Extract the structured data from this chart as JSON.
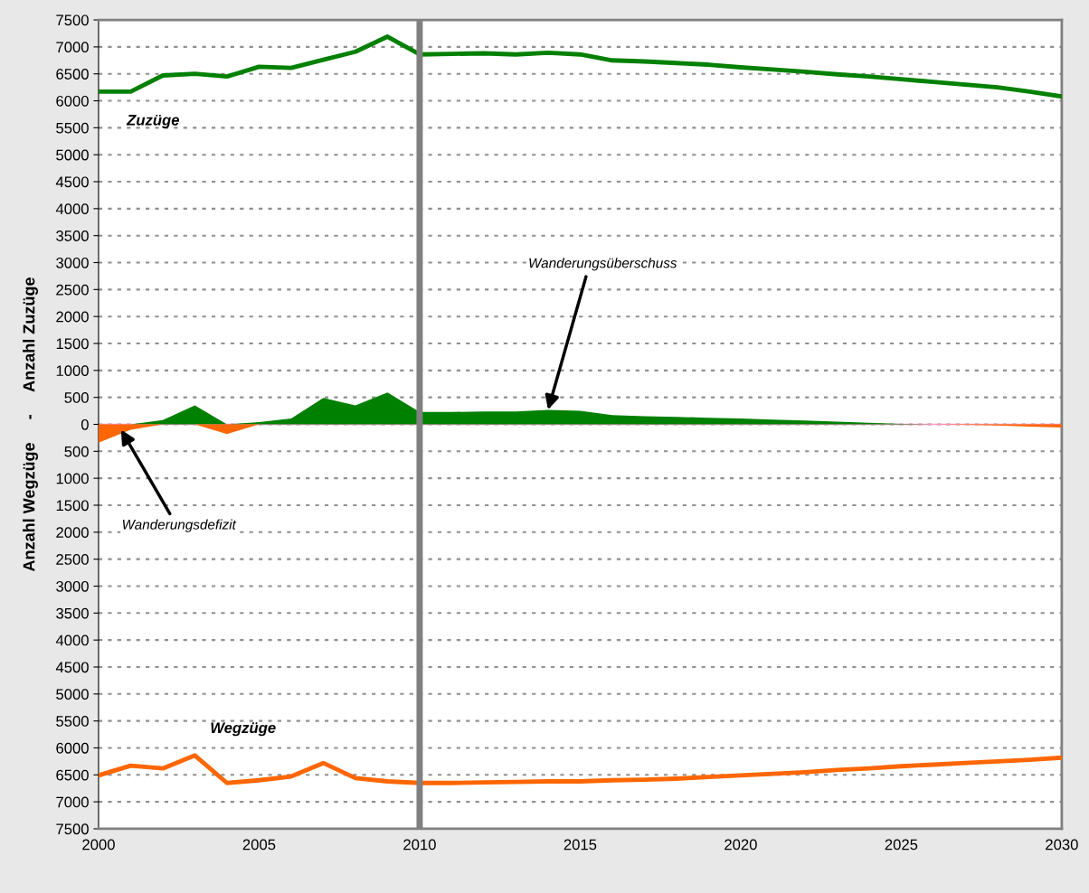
{
  "chart_data": {
    "type": "line",
    "ylabel": "Anzahl Wegzüge     -     Anzahl Zuzüge",
    "x": [
      2000,
      2001,
      2002,
      2003,
      2004,
      2005,
      2006,
      2007,
      2008,
      2009,
      2010,
      2011,
      2012,
      2013,
      2014,
      2015,
      2016,
      2017,
      2018,
      2019,
      2020,
      2021,
      2022,
      2023,
      2024,
      2025,
      2026,
      2027,
      2028,
      2029,
      2030
    ],
    "series": [
      {
        "name": "Zuzüge",
        "color": "#008000",
        "values": [
          6170,
          6170,
          6470,
          6500,
          6450,
          6630,
          6610,
          6760,
          6910,
          7190,
          6860,
          6870,
          6880,
          6860,
          6890,
          6860,
          6750,
          6730,
          6700,
          6670,
          6620,
          6580,
          6540,
          6490,
          6450,
          6400,
          6350,
          6300,
          6250,
          6170,
          6080
        ]
      },
      {
        "name": "Wegzüge",
        "color": "#ff6600",
        "values": [
          -6510,
          -6330,
          -6380,
          -6140,
          -6650,
          -6600,
          -6530,
          -6280,
          -6560,
          -6620,
          -6650,
          -6650,
          -6640,
          -6630,
          -6620,
          -6620,
          -6600,
          -6590,
          -6570,
          -6540,
          -6510,
          -6480,
          -6450,
          -6410,
          -6380,
          -6340,
          -6310,
          -6280,
          -6250,
          -6220,
          -6180
        ]
      },
      {
        "type": "area",
        "color": "#008000",
        "values": [
          0,
          0,
          80,
          350,
          0,
          40,
          110,
          490,
          350,
          590,
          230,
          230,
          240,
          240,
          270,
          250,
          170,
          150,
          140,
          120,
          110,
          90,
          70,
          50,
          30,
          10,
          0,
          0,
          0,
          0,
          0
        ]
      },
      {
        "type": "area",
        "color": "#ff6600",
        "values": [
          -340,
          -100,
          0,
          0,
          -180,
          0,
          0,
          0,
          0,
          0,
          0,
          0,
          0,
          0,
          0,
          0,
          0,
          0,
          0,
          0,
          0,
          0,
          0,
          0,
          0,
          0,
          0,
          -10,
          -20,
          -40,
          -60
        ]
      }
    ],
    "xlim": [
      2000,
      2030
    ],
    "xticks": [
      2000,
      2005,
      2010,
      2015,
      2020,
      2025,
      2030
    ],
    "ylim": [
      -7500,
      7500
    ],
    "yticks": [
      {
        "value": -7500,
        "label": "7500"
      },
      {
        "value": -7000,
        "label": "7000"
      },
      {
        "value": -6500,
        "label": "6500"
      },
      {
        "value": -6000,
        "label": "6000"
      },
      {
        "value": -5500,
        "label": "5500"
      },
      {
        "value": -5000,
        "label": "5000"
      },
      {
        "value": -4500,
        "label": "4500"
      },
      {
        "value": -4000,
        "label": "4000"
      },
      {
        "value": -3500,
        "label": "3500"
      },
      {
        "value": -3000,
        "label": "3000"
      },
      {
        "value": -2500,
        "label": "2500"
      },
      {
        "value": -2000,
        "label": "2000"
      },
      {
        "value": -1500,
        "label": "1500"
      },
      {
        "value": -1000,
        "label": "1000"
      },
      {
        "value": -500,
        "label": "500"
      },
      0,
      500,
      1000,
      1500,
      2000,
      2500,
      3000,
      3500,
      4000,
      4500,
      5000,
      5500,
      6000,
      6500,
      7000,
      7500
    ],
    "ref_lines": [
      {
        "axis": "x",
        "value": 2010,
        "color": "#808080"
      },
      {
        "axis": "y",
        "value": 0,
        "color": "#ff99cc"
      }
    ],
    "annotations": [
      {
        "text": "Wanderungsüberschuss",
        "x": 2014,
        "y": 270
      },
      {
        "text": "Wanderungsdefizit",
        "x": 2000.7,
        "y": -100
      }
    ],
    "grid": "y",
    "legend": false
  }
}
